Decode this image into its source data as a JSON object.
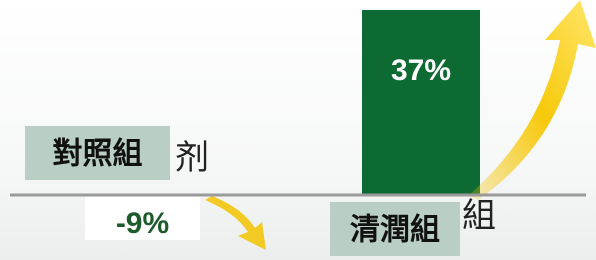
{
  "chart_data": {
    "type": "bar",
    "categories": [
      "對照組",
      "清潤組"
    ],
    "values": [
      -9,
      37
    ],
    "value_labels": [
      "-9%",
      "37%"
    ],
    "colors": [
      "#ffffff",
      "#0e6a33"
    ],
    "value_label_colors": [
      "#1c5b2c",
      "#ffffff"
    ],
    "background_labels": [
      "剂",
      "組"
    ],
    "ylim": [
      -13,
      39
    ]
  }
}
